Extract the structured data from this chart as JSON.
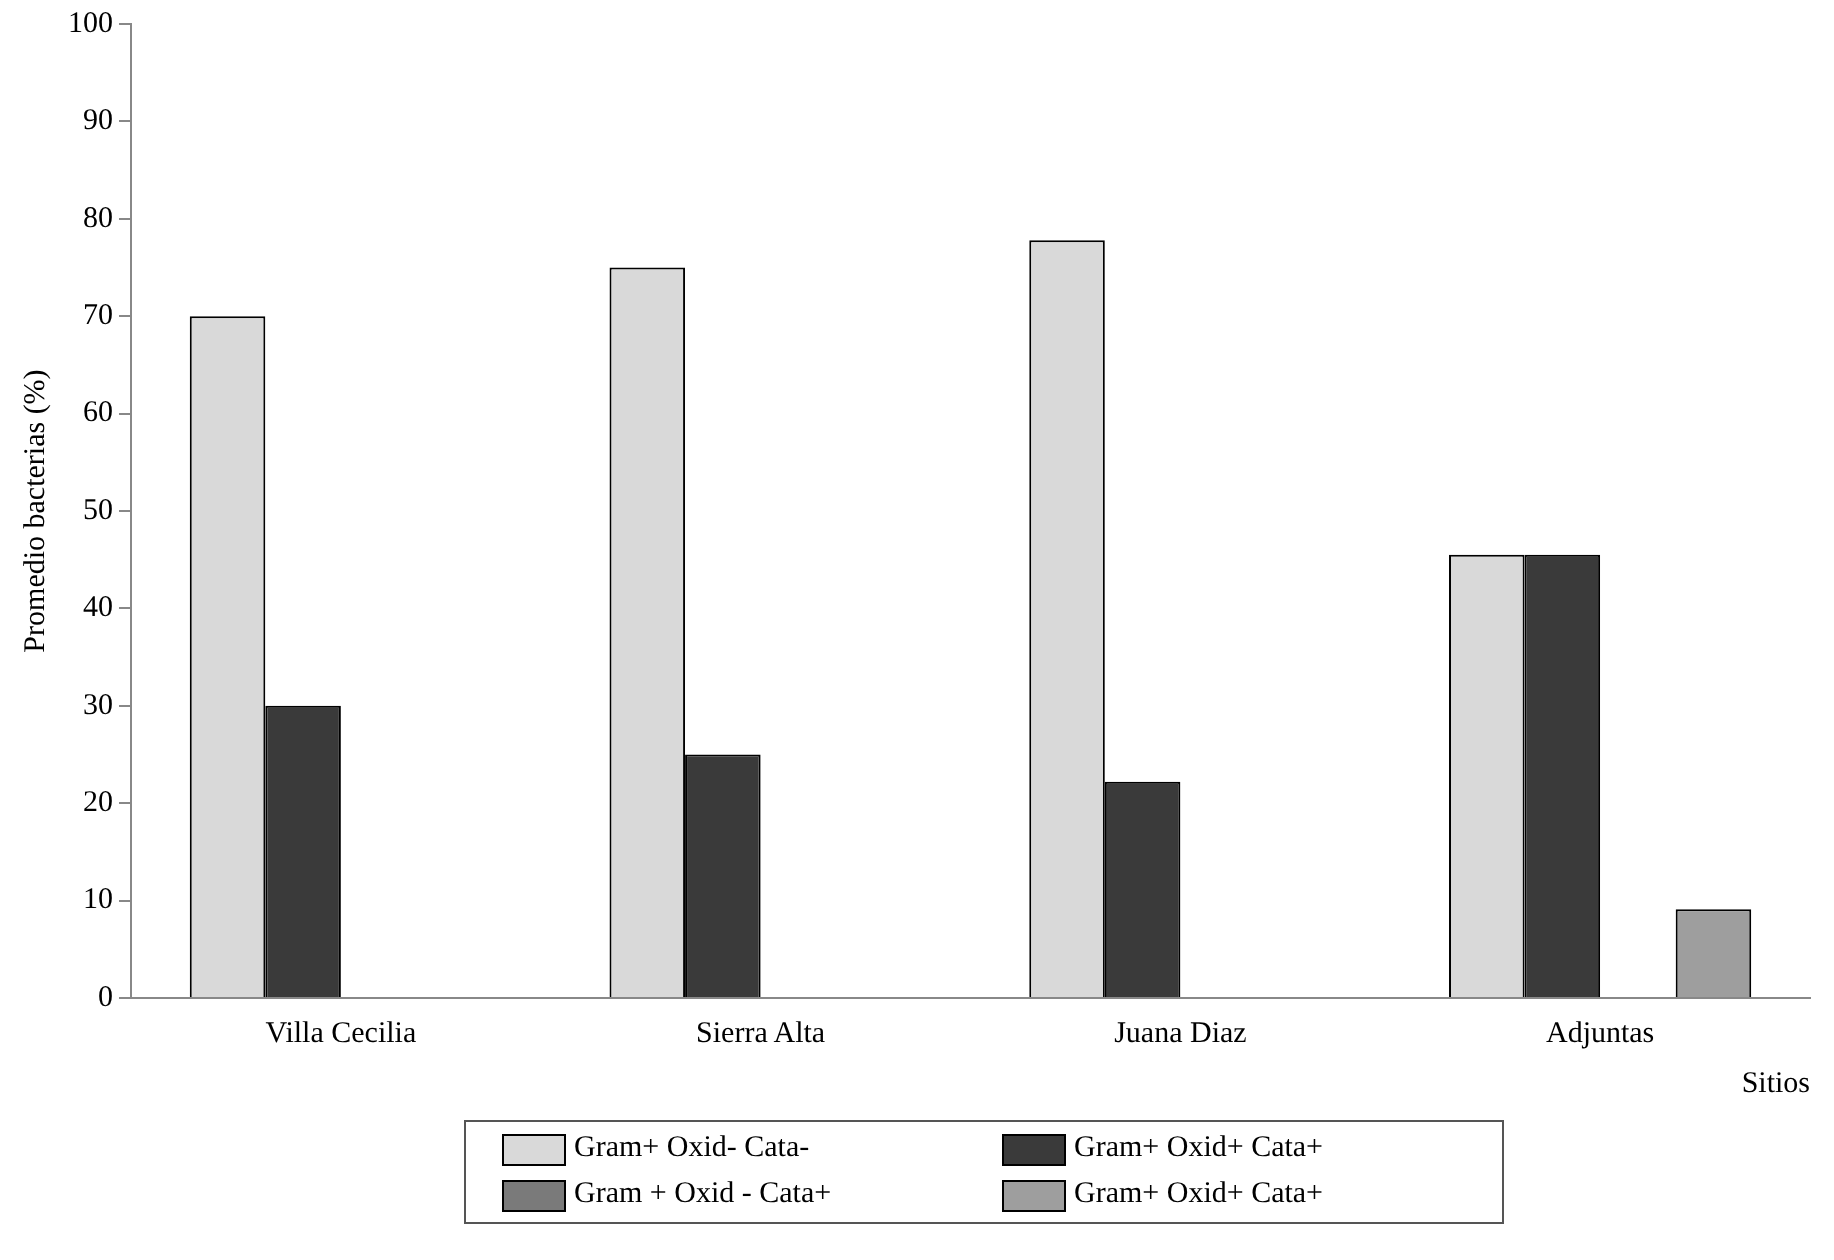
{
  "chart_data": {
    "type": "bar",
    "ylabel": "Promedio bacterias (%)",
    "xlabel": "Sitios",
    "categories": [
      "Villa Cecilia",
      "Sierra Alta",
      "Juana Diaz",
      "Adjuntas"
    ],
    "series": [
      {
        "name": "Gram+  Oxid-  Cata-",
        "color": "#d9d9d9",
        "values": [
          70,
          75,
          77.8,
          45.5
        ]
      },
      {
        "name": "Gram+  Oxid+  Cata+",
        "color": "#3a3a3a",
        "values": [
          30,
          25,
          22.2,
          45.5
        ]
      },
      {
        "name": "Gram +  Oxid -  Cata+",
        "color": "#7a7a7a",
        "values": [
          0,
          0,
          0,
          0
        ]
      },
      {
        "name": "Gram+  Oxid+  Cata+",
        "color": "#9e9e9e",
        "values": [
          0,
          0,
          0,
          9.1
        ]
      }
    ],
    "ylim": [
      0,
      100
    ],
    "yticks": [
      0,
      10,
      20,
      30,
      40,
      50,
      60,
      70,
      80,
      90,
      100
    ],
    "grid": false,
    "legend": "bottom"
  }
}
